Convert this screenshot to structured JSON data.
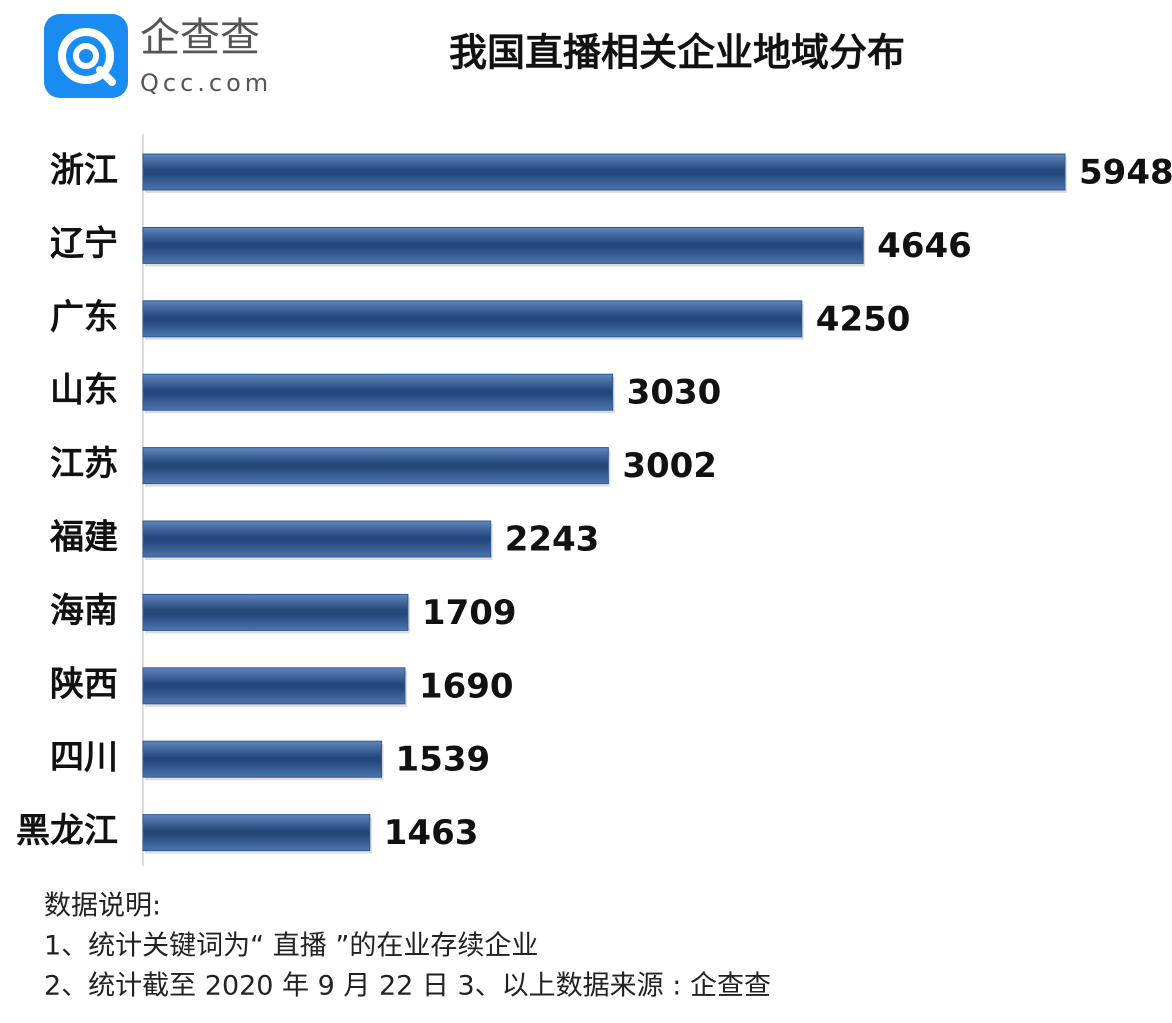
{
  "chart_data": {
    "type": "bar",
    "orientation": "horizontal",
    "title": "我国直播相关企业地域分布",
    "logo": {
      "name": "企查查",
      "url": "Qcc.com"
    },
    "categories": [
      "浙江",
      "辽宁",
      "广东",
      "山东",
      "江苏",
      "福建",
      "海南",
      "陕西",
      "四川",
      "黑龙江"
    ],
    "values": [
      5948,
      4646,
      4250,
      3030,
      3002,
      2243,
      1709,
      1690,
      1539,
      1463
    ],
    "color": "#2f5a94",
    "notes": [
      "数据说明:",
      "1、统计关键词为“ 直播 ”的在业存续企业",
      "2、统计截至 2020 年 9 月 22 日 3、以上数据来源 : 企查查"
    ]
  }
}
